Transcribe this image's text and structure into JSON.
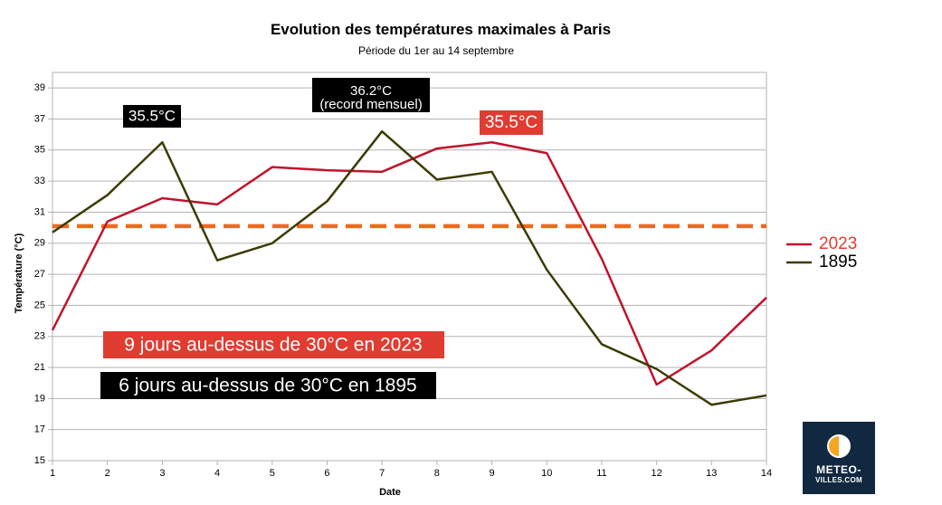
{
  "chart_data": {
    "type": "line",
    "title": "Evolution des températures maximales à Paris",
    "subtitle": "Période du 1er au 14 septembre",
    "xlabel": "Date",
    "ylabel": "Température (°C)",
    "x": [
      1,
      2,
      3,
      4,
      5,
      6,
      7,
      8,
      9,
      10,
      11,
      12,
      13,
      14
    ],
    "x_tick_labels": [
      "1",
      "2",
      "3",
      "4",
      "5",
      "6",
      "7",
      "8",
      "9",
      "10",
      "11",
      "12",
      "13",
      "14"
    ],
    "ylim": [
      15,
      40
    ],
    "y_ticks": [
      15,
      17,
      19,
      21,
      23,
      25,
      27,
      29,
      31,
      33,
      35,
      37,
      39
    ],
    "y_tick_labels": [
      "15",
      "17",
      "19",
      "21",
      "23",
      "25",
      "27",
      "29",
      "31",
      "33",
      "35",
      "37",
      "39"
    ],
    "grid": true,
    "legend_position": "right",
    "series": [
      {
        "name": "2023",
        "color": "#c0142c",
        "values": [
          23.4,
          30.4,
          31.9,
          31.5,
          33.9,
          33.7,
          33.6,
          35.1,
          35.5,
          34.8,
          28.0,
          19.9,
          22.1,
          25.5
        ]
      },
      {
        "name": "1895",
        "color": "#3b3b00",
        "values": [
          29.7,
          32.1,
          35.5,
          27.9,
          29.0,
          31.7,
          36.2,
          33.1,
          33.6,
          27.3,
          22.5,
          20.9,
          18.6,
          19.2
        ]
      }
    ],
    "reference_line": {
      "value": 30.1,
      "color": "#f06a1c",
      "style": "dashed"
    },
    "annotations": [
      {
        "id": "ann-1895-peak-early",
        "text": "35.5°C",
        "bg": "#000000"
      },
      {
        "id": "ann-1895-record",
        "lines": [
          "36.2°C",
          "(record mensuel)"
        ],
        "bg": "#000000"
      },
      {
        "id": "ann-2023-peak",
        "text": "35.5°C",
        "bg": "#e03c31"
      },
      {
        "id": "ann-days-2023",
        "text": "9 jours au-dessus de 30°C en 2023",
        "bg": "#e03c31"
      },
      {
        "id": "ann-days-1895",
        "text": "6 jours au-dessus de 30°C en 1895",
        "bg": "#000000"
      }
    ],
    "legend_colors": {
      "2023": "#e03c31",
      "1895": "#000000"
    }
  },
  "logo": {
    "line1": "METEO-",
    "line2": "VILLES.COM"
  }
}
